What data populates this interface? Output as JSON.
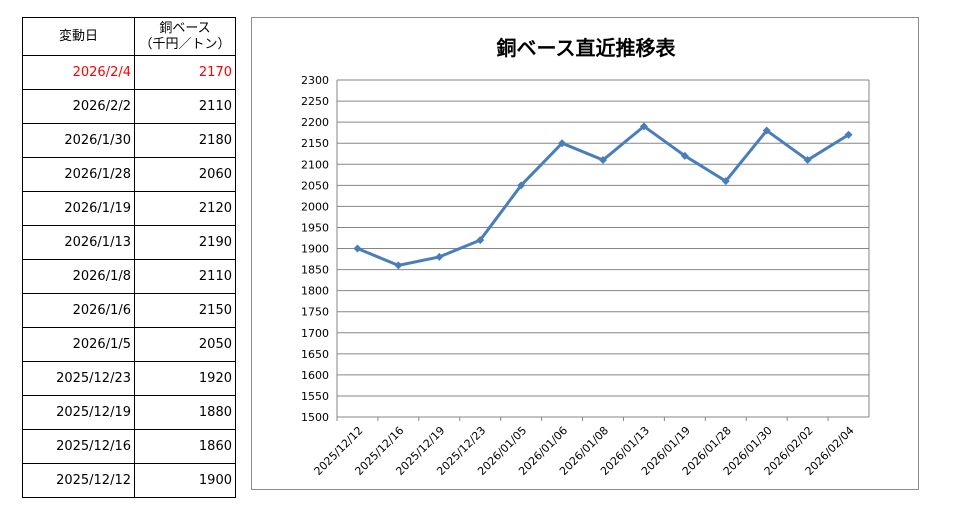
{
  "table": {
    "header_date": "変動日",
    "header_value_line1": "銅ベース",
    "header_value_line2": "（千円／トン）",
    "rows": [
      {
        "date": "2026/2/4",
        "value": "2170",
        "highlight": true
      },
      {
        "date": "2026/2/2",
        "value": "2110"
      },
      {
        "date": "2026/1/30",
        "value": "2180"
      },
      {
        "date": "2026/1/28",
        "value": "2060"
      },
      {
        "date": "2026/1/19",
        "value": "2120"
      },
      {
        "date": "2026/1/13",
        "value": "2190"
      },
      {
        "date": "2026/1/8",
        "value": "2110"
      },
      {
        "date": "2026/1/6",
        "value": "2150"
      },
      {
        "date": "2026/1/5",
        "value": "2050"
      },
      {
        "date": "2025/12/23",
        "value": "1920"
      },
      {
        "date": "2025/12/19",
        "value": "1880"
      },
      {
        "date": "2025/12/16",
        "value": "1860"
      },
      {
        "date": "2025/12/12",
        "value": "1900"
      }
    ],
    "highlight_color": "#ff0000"
  },
  "chart_data": {
    "type": "line",
    "title": "銅ベース直近推移表",
    "x": [
      "2025/12/12",
      "2025/12/16",
      "2025/12/19",
      "2025/12/23",
      "2026/01/05",
      "2026/01/06",
      "2026/01/08",
      "2026/01/13",
      "2026/01/19",
      "2026/01/28",
      "2026/01/30",
      "2026/02/02",
      "2026/02/04"
    ],
    "series": [
      {
        "values": [
          1900,
          1860,
          1880,
          1920,
          2050,
          2150,
          2110,
          2190,
          2120,
          2060,
          2180,
          2110,
          2170
        ],
        "color": "#4a7ebb",
        "marker": "diamond"
      }
    ],
    "ylim": [
      1500,
      2300
    ],
    "ytick_step": 50,
    "grid": true,
    "legend": "none",
    "xlabel": "",
    "ylabel": ""
  }
}
